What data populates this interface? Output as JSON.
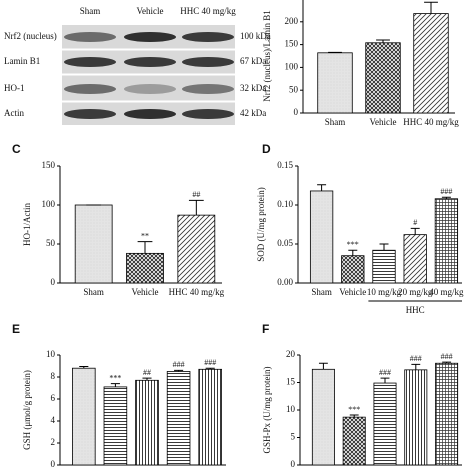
{
  "blot": {
    "lanes": [
      "Sham",
      "Vehicle",
      "HHC 40 mg/kg"
    ],
    "rows": [
      {
        "label": "Nrf2 (nucleus)",
        "size": "100 kDa"
      },
      {
        "label": "Lamin B1",
        "size": "67 kDa"
      },
      {
        "label": "HO-1",
        "size": "32 kDa"
      },
      {
        "label": "Actin",
        "size": "42 kDa"
      }
    ]
  },
  "chart_data": [
    {
      "type": "bar",
      "ylabel": "Nrf2 (nucleus)/Lamin B1",
      "categories": [
        "Sham",
        "Vehicle",
        "HHC 40 mg/kg"
      ],
      "values": [
        132,
        154,
        218
      ],
      "errors": [
        1,
        6,
        25
      ],
      "ylim": [
        0,
        250
      ],
      "yticks": [
        0,
        50,
        100,
        150,
        200
      ]
    },
    {
      "type": "bar",
      "label": "C",
      "ylabel": "HO-1/Actin",
      "categories": [
        "Sham",
        "Vehicle",
        "HHC 40 mg/kg"
      ],
      "values": [
        100,
        38,
        87
      ],
      "errors": [
        0,
        15,
        19
      ],
      "annotations": [
        null,
        "**",
        "##"
      ],
      "ylim": [
        0,
        150
      ],
      "yticks": [
        0,
        50,
        100,
        150
      ]
    },
    {
      "type": "bar",
      "label": "D",
      "ylabel": "SOD (U/mg protein)",
      "categories": [
        "Sham",
        "Vehicle",
        "10 mg/kg",
        "20 mg/kg",
        "40 mg/kg"
      ],
      "group_label": "HHC",
      "values": [
        0.118,
        0.035,
        0.042,
        0.062,
        0.108
      ],
      "errors": [
        0.008,
        0.007,
        0.008,
        0.008,
        0.002
      ],
      "annotations": [
        null,
        "***",
        null,
        "#",
        "###"
      ],
      "ylim": [
        0,
        0.15
      ],
      "yticks": [
        {
          "value": 0,
          "label": "0.00"
        },
        {
          "value": 0.05,
          "label": "0.05"
        },
        {
          "value": 0.1,
          "label": "0.10"
        },
        {
          "value": 0.15,
          "label": "0.15"
        }
      ]
    },
    {
      "type": "bar",
      "label": "E",
      "ylabel": "GSH (μmol/g protein)",
      "categories": [
        null,
        null,
        null,
        null,
        null
      ],
      "values": [
        8.8,
        7.1,
        7.7,
        8.5,
        8.7
      ],
      "errors": [
        0.15,
        0.3,
        0.2,
        0.1,
        0.1
      ],
      "annotations": [
        null,
        "***",
        "##",
        "###",
        "###"
      ],
      "ylim": [
        0,
        10
      ],
      "yticks": [
        0,
        2,
        4,
        6,
        8,
        10
      ]
    },
    {
      "type": "bar",
      "label": "F",
      "ylabel": "GSH-Px (U/mg protein)",
      "categories": [
        null,
        null,
        null,
        null,
        null
      ],
      "values": [
        17.4,
        8.7,
        14.9,
        17.3,
        18.5
      ],
      "errors": [
        1.1,
        0.4,
        0.9,
        1.0,
        0.2
      ],
      "annotations": [
        null,
        "***",
        "###",
        "###",
        "###"
      ],
      "ylim": [
        0,
        20
      ],
      "yticks": [
        0,
        5,
        10,
        15,
        20
      ]
    }
  ]
}
